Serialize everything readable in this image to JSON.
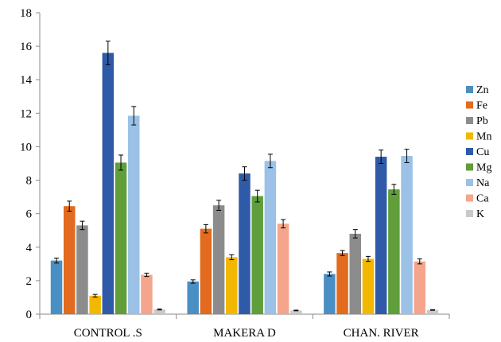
{
  "chart_data": {
    "type": "bar",
    "title": "",
    "xlabel": "",
    "ylabel": "",
    "ylim": [
      0,
      18
    ],
    "yticks": [
      0,
      2,
      4,
      6,
      8,
      10,
      12,
      14,
      16,
      18
    ],
    "categories": [
      "CONTROL .S",
      "MAKERA D",
      "CHAN. RIVER"
    ],
    "legend_position": "right",
    "grid": false,
    "series": [
      {
        "name": "Zn",
        "color": "#4a8fc4",
        "values": [
          3.2,
          1.95,
          2.4
        ],
        "errors": [
          0.15,
          0.1,
          0.12
        ]
      },
      {
        "name": "Fe",
        "color": "#e26b1f",
        "values": [
          6.45,
          5.1,
          3.65
        ],
        "errors": [
          0.3,
          0.25,
          0.15
        ]
      },
      {
        "name": "Pb",
        "color": "#8c8c8c",
        "values": [
          5.3,
          6.5,
          4.8
        ],
        "errors": [
          0.25,
          0.3,
          0.25
        ]
      },
      {
        "name": "Mn",
        "color": "#f2b800",
        "values": [
          1.1,
          3.4,
          3.3
        ],
        "errors": [
          0.08,
          0.15,
          0.15
        ]
      },
      {
        "name": "Cu",
        "color": "#2e5aa8",
        "values": [
          15.6,
          8.4,
          9.4
        ],
        "errors": [
          0.7,
          0.4,
          0.4
        ]
      },
      {
        "name": "Mg",
        "color": "#5f9e3a",
        "values": [
          9.05,
          7.05,
          7.45
        ],
        "errors": [
          0.45,
          0.35,
          0.3
        ]
      },
      {
        "name": "Na",
        "color": "#9bc1e6",
        "values": [
          11.85,
          9.15,
          9.45
        ],
        "errors": [
          0.55,
          0.4,
          0.4
        ]
      },
      {
        "name": "Ca",
        "color": "#f4a58c",
        "values": [
          2.35,
          5.4,
          3.15
        ],
        "errors": [
          0.1,
          0.25,
          0.15
        ]
      },
      {
        "name": "K",
        "color": "#c9c9c9",
        "values": [
          0.28,
          0.22,
          0.25
        ],
        "errors": [
          0.03,
          0.02,
          0.02
        ]
      }
    ]
  }
}
